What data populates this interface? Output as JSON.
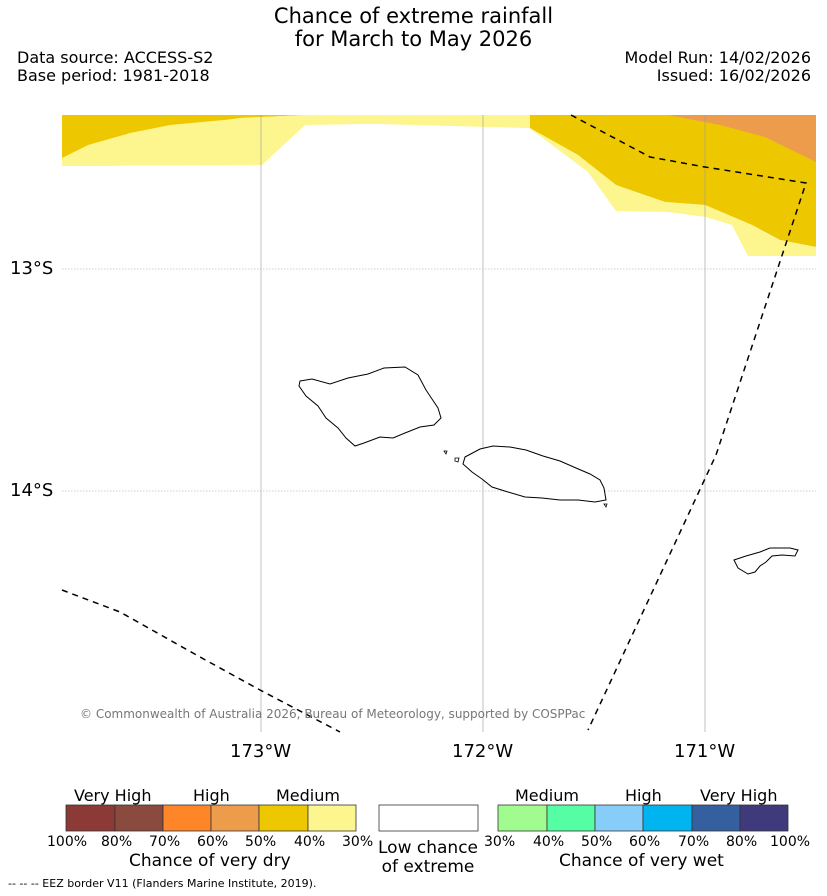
{
  "title": {
    "line1": "Chance of extreme rainfall",
    "line2": "for March to May 2026"
  },
  "meta": {
    "data_source": "Data source: ACCESS-S2",
    "base_period": "Base period: 1981-2018",
    "model_run": "Model Run: 14/02/2026",
    "issued": "Issued: 16/02/2026"
  },
  "map": {
    "lat_labels": [
      "13°S",
      "14°S"
    ],
    "lon_labels": [
      "173°W",
      "172°W",
      "171°W"
    ],
    "copyright": "© Commonwealth of Australia 2026, Bureau of Meteorology, supported by COSPPac",
    "colors": {
      "dry_very_high_100": "#8b3a35",
      "dry_very_high_80": "#8b4a3e",
      "dry_high_70": "#fe8629",
      "dry_high_60": "#ed9c4c",
      "dry_medium_50": "#edc700",
      "dry_medium_40": "#fdf58e",
      "wet_medium_30": "#a0fc8e",
      "wet_medium_40": "#55fda3",
      "wet_high_50": "#87cdfa",
      "wet_high_60": "#00b4f0",
      "wet_very_high_70": "#3560a0",
      "wet_very_high_80": "#3f3a7b"
    }
  },
  "legend": {
    "dry": {
      "headers": [
        "Very High",
        "High",
        "Medium"
      ],
      "ticks": [
        "100%",
        "80%",
        "70%",
        "60%",
        "50%",
        "40%",
        "30%"
      ],
      "label": "Chance of very dry"
    },
    "low": {
      "line1": "Low chance",
      "line2": "of extreme"
    },
    "wet": {
      "headers": [
        "Medium",
        "High",
        "Very High"
      ],
      "ticks": [
        "30%",
        "40%",
        "50%",
        "60%",
        "70%",
        "80%",
        "100%"
      ],
      "label": "Chance of very wet"
    }
  },
  "footnote": "--  --  -- EEZ border V11 (Flanders Marine Institute, 2019)."
}
